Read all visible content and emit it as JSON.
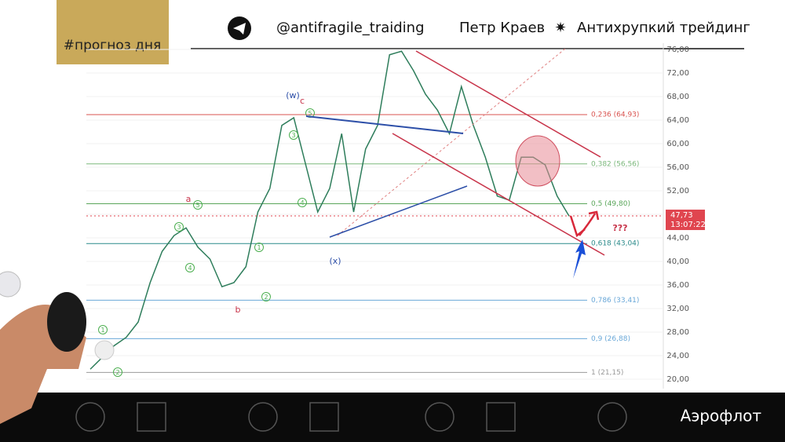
{
  "header": {
    "tag": "#прогноз дня",
    "channel": "@antifragile_traiding",
    "author": "Петр Краев",
    "brand": "Антихрупкий трейдинг"
  },
  "footer": {
    "ticker": "Аэрофлот"
  },
  "chart_data": {
    "type": "line",
    "categories": [
      null,
      null,
      null,
      null,
      null,
      null,
      null,
      null,
      null,
      null,
      null,
      null,
      null,
      null,
      null,
      null,
      null,
      null,
      null,
      null,
      null,
      null,
      null,
      null,
      null,
      null,
      null,
      null,
      null,
      null,
      null,
      null,
      null,
      null,
      null,
      null,
      null,
      null,
      null,
      null,
      null
    ],
    "series": [
      {
        "color": "#2e7d5b",
        "values": [
          21.7,
          23.7,
          25.7,
          27.1,
          29.7,
          36.4,
          41.7,
          44.4,
          45.7,
          42.4,
          40.4,
          35.7,
          36.4,
          39.1,
          48.4,
          52.4,
          63.1,
          64.4,
          56.4,
          48.4,
          52.4,
          61.7,
          48.4,
          59.1,
          63.1,
          75.1,
          75.7,
          72.4,
          68.4,
          65.7,
          61.7,
          69.7,
          63.1,
          57.7,
          51.1,
          50.4,
          57.7,
          57.7,
          56.4,
          51.1,
          47.7
        ]
      }
    ],
    "ylim": [
      20,
      76
    ],
    "yticks": [
      {
        "value": 20,
        "label": "20,00"
      },
      {
        "value": 24,
        "label": "24,00"
      },
      {
        "value": 28,
        "label": "28,00"
      },
      {
        "value": 32,
        "label": "32,00"
      },
      {
        "value": 36,
        "label": "36,00"
      },
      {
        "value": 40,
        "label": "40,00"
      },
      {
        "value": 44,
        "label": "44,00"
      },
      {
        "value": 48,
        "label": "48,00"
      },
      {
        "value": 52,
        "label": "52,00"
      },
      {
        "value": 56,
        "label": "56,00"
      },
      {
        "value": 60,
        "label": "60,00"
      },
      {
        "value": 64,
        "label": "64,00"
      },
      {
        "value": 68,
        "label": "68,00"
      },
      {
        "value": 72,
        "label": "72,00"
      },
      {
        "value": 76,
        "label": "76,00"
      }
    ],
    "fib_levels": [
      {
        "value": 64.93,
        "label": "0,236 (64,93)",
        "color": "#d9534f"
      },
      {
        "value": 56.56,
        "label": "0,382 (56,56)",
        "color": "#7cb87c"
      },
      {
        "value": 49.8,
        "label": "0,5 (49,80)",
        "color": "#5aa65a"
      },
      {
        "value": 43.04,
        "label": "0,618 (43,04)",
        "color": "#2a8a8a"
      },
      {
        "value": 33.41,
        "label": "0,786 (33,41)",
        "color": "#6aa8d8"
      },
      {
        "value": 26.88,
        "label": "0,9 (26,88)",
        "color": "#6aa8d8"
      },
      {
        "value": 21.15,
        "label": "1 (21,15)",
        "color": "#999999"
      }
    ],
    "last_price": {
      "value": 47.73,
      "label": "47,73",
      "time": "13:07:22",
      "color": "#e0454f"
    },
    "wave_labels": [
      "(w)",
      "c",
      "a",
      "b",
      "(x)",
      "???"
    ],
    "wave_counts": [
      "1",
      "2",
      "3",
      "4",
      "5",
      "1",
      "2",
      "3",
      "4",
      "5"
    ]
  }
}
